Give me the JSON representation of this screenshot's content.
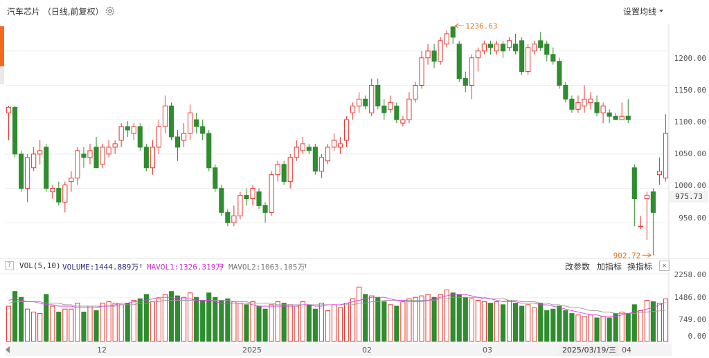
{
  "header": {
    "title": "汽车芯片 （日线,前复权）",
    "set_ma_label": "设置均线"
  },
  "icons": {
    "settings": "gear-icon",
    "set_ma_caret": "chevron-down-icon",
    "help": "question-icon",
    "close": "close-icon",
    "scroll_left": "chevron-left-icon"
  },
  "price_axis": {
    "labels": [
      "1200.00",
      "1150.00",
      "1100.00",
      "1050.00",
      "1000.00",
      "950.00"
    ],
    "current_price": "975.73"
  },
  "annotations": {
    "high": "1236.63",
    "low": "902.72"
  },
  "volume_panel": {
    "indicator": "VOL(5,10)",
    "volume": "VOLUME:1444.889万",
    "mavol1": "MAVOL1:1326.319万",
    "mavol2": "MAVOL2:1063.105万",
    "buttons": [
      "改参数",
      "加指标",
      "换指标"
    ],
    "axis_labels": [
      "2258.00",
      "1486.00",
      "749.00",
      "0.00"
    ]
  },
  "date_axis": {
    "labels": [
      "12",
      "2025",
      "02",
      "03",
      "04"
    ],
    "current_date": "2025/03/19/三"
  },
  "colors": {
    "up": "#e8352e",
    "down": "#2f8c2f",
    "ma1": "#e040e0",
    "ma2": "#999999",
    "annotation": "#e8761d"
  },
  "chart_data": {
    "type": "candlestick",
    "y_range": [
      900,
      1240
    ],
    "volume_range": [
      0,
      2258
    ],
    "candles": [
      [
        1110,
        1118,
        1070,
        1120,
        1200
      ],
      [
        1118,
        1050,
        1045,
        1120,
        1700
      ],
      [
        1050,
        1000,
        995,
        1055,
        1500
      ],
      [
        1000,
        1045,
        980,
        1050,
        1100
      ],
      [
        1030,
        1050,
        1025,
        1060,
        1000
      ],
      [
        1050,
        1055,
        1035,
        1070,
        950
      ],
      [
        1060,
        1000,
        995,
        1065,
        1600
      ],
      [
        995,
        1000,
        985,
        1005,
        1200
      ],
      [
        1000,
        980,
        975,
        1010,
        1000
      ],
      [
        980,
        1005,
        965,
        1010,
        1100
      ],
      [
        1010,
        1015,
        995,
        1025,
        1100
      ],
      [
        1015,
        1055,
        1005,
        1060,
        1300
      ],
      [
        1050,
        1045,
        1030,
        1060,
        1000
      ],
      [
        1045,
        1055,
        1035,
        1065,
        1200
      ],
      [
        1060,
        1030,
        1030,
        1075,
        1050
      ],
      [
        1035,
        1060,
        1030,
        1065,
        1300
      ],
      [
        1050,
        1060,
        1045,
        1070,
        1350
      ],
      [
        1060,
        1065,
        1050,
        1070,
        1300
      ],
      [
        1070,
        1090,
        1060,
        1095,
        1250
      ],
      [
        1090,
        1085,
        1075,
        1098,
        1300
      ],
      [
        1080,
        1090,
        1070,
        1095,
        1400
      ],
      [
        1090,
        1060,
        1055,
        1095,
        1450
      ],
      [
        1060,
        1030,
        1025,
        1065,
        1600
      ],
      [
        1030,
        1060,
        1020,
        1070,
        1350
      ],
      [
        1060,
        1090,
        1050,
        1100,
        1450
      ],
      [
        1090,
        1120,
        1080,
        1135,
        1600
      ],
      [
        1120,
        1075,
        1070,
        1125,
        1700
      ],
      [
        1075,
        1060,
        1040,
        1085,
        1550
      ],
      [
        1070,
        1080,
        1060,
        1095,
        1500
      ],
      [
        1080,
        1110,
        1070,
        1122,
        1650
      ],
      [
        1100,
        1090,
        1080,
        1110,
        1500
      ],
      [
        1090,
        1080,
        1070,
        1100,
        1400
      ],
      [
        1080,
        1030,
        1025,
        1085,
        1650
      ],
      [
        1030,
        1000,
        995,
        1035,
        1500
      ],
      [
        1000,
        965,
        960,
        1005,
        1400
      ],
      [
        965,
        950,
        945,
        970,
        1450
      ],
      [
        950,
        960,
        945,
        975,
        1350
      ],
      [
        960,
        990,
        955,
        995,
        1300
      ],
      [
        990,
        985,
        975,
        1000,
        1250
      ],
      [
        985,
        1000,
        975,
        1005,
        1350
      ],
      [
        995,
        975,
        970,
        1000,
        1200
      ],
      [
        975,
        965,
        950,
        980,
        1100
      ],
      [
        965,
        1020,
        960,
        1025,
        1250
      ],
      [
        1020,
        1035,
        1010,
        1040,
        1350
      ],
      [
        1035,
        1010,
        1005,
        1040,
        1300
      ],
      [
        1010,
        1045,
        1000,
        1050,
        1250
      ],
      [
        1045,
        1060,
        1040,
        1070,
        1200
      ],
      [
        1055,
        1065,
        1050,
        1075,
        1350
      ],
      [
        1060,
        1055,
        1050,
        1065,
        1250
      ],
      [
        1060,
        1025,
        1020,
        1065,
        1100
      ],
      [
        1025,
        1045,
        1015,
        1050,
        1300
      ],
      [
        1040,
        1060,
        1035,
        1065,
        1050
      ],
      [
        1060,
        1070,
        1055,
        1080,
        1250
      ],
      [
        1060,
        1065,
        1050,
        1075,
        1150
      ],
      [
        1070,
        1100,
        1060,
        1105,
        1300
      ],
      [
        1110,
        1120,
        1100,
        1125,
        1450
      ],
      [
        1120,
        1130,
        1110,
        1140,
        1850
      ],
      [
        1130,
        1120,
        1115,
        1135,
        1600
      ],
      [
        1110,
        1150,
        1105,
        1160,
        1550
      ],
      [
        1150,
        1120,
        1115,
        1160,
        1500
      ],
      [
        1120,
        1110,
        1100,
        1130,
        1350
      ],
      [
        1115,
        1125,
        1110,
        1135,
        1250
      ],
      [
        1120,
        1100,
        1095,
        1125,
        1200
      ],
      [
        1095,
        1100,
        1090,
        1105,
        1350
      ],
      [
        1100,
        1130,
        1095,
        1140,
        1450
      ],
      [
        1130,
        1150,
        1125,
        1155,
        1500
      ],
      [
        1150,
        1190,
        1145,
        1200,
        1550
      ],
      [
        1190,
        1200,
        1180,
        1210,
        1600
      ],
      [
        1200,
        1185,
        1175,
        1210,
        1500
      ],
      [
        1185,
        1215,
        1180,
        1220,
        1600
      ],
      [
        1210,
        1225,
        1205,
        1230,
        1750
      ],
      [
        1235,
        1220,
        1210,
        1236.63,
        1650
      ],
      [
        1210,
        1160,
        1155,
        1215,
        1600
      ],
      [
        1160,
        1150,
        1140,
        1170,
        1500
      ],
      [
        1150,
        1190,
        1130,
        1195,
        1450
      ],
      [
        1190,
        1200,
        1170,
        1205,
        1400
      ],
      [
        1200,
        1210,
        1195,
        1215,
        1350
      ],
      [
        1210,
        1205,
        1195,
        1215,
        1300
      ],
      [
        1200,
        1210,
        1195,
        1215,
        1350
      ],
      [
        1210,
        1200,
        1190,
        1215,
        1250
      ],
      [
        1205,
        1215,
        1200,
        1220,
        1400
      ],
      [
        1210,
        1200,
        1195,
        1225,
        1300
      ],
      [
        1215,
        1170,
        1165,
        1220,
        1200
      ],
      [
        1170,
        1205,
        1165,
        1210,
        1250
      ],
      [
        1200,
        1210,
        1195,
        1215,
        1150
      ],
      [
        1215,
        1205,
        1200,
        1228,
        1300
      ],
      [
        1210,
        1195,
        1185,
        1215,
        1050
      ],
      [
        1195,
        1185,
        1180,
        1205,
        1100
      ],
      [
        1185,
        1150,
        1145,
        1190,
        1200
      ],
      [
        1150,
        1130,
        1125,
        1155,
        1050
      ],
      [
        1130,
        1115,
        1110,
        1135,
        950
      ],
      [
        1115,
        1125,
        1110,
        1135,
        900
      ],
      [
        1120,
        1130,
        1110,
        1150,
        850
      ],
      [
        1125,
        1130,
        1115,
        1140,
        900
      ],
      [
        1125,
        1110,
        1105,
        1135,
        800
      ],
      [
        1110,
        1120,
        1095,
        1125,
        850
      ],
      [
        1110,
        1105,
        1095,
        1115,
        800
      ],
      [
        1105,
        1100,
        1100,
        1110,
        950
      ],
      [
        1100,
        1105,
        1100,
        1125,
        1000
      ],
      [
        1105,
        1100,
        1095,
        1130,
        950
      ],
      [
        1030,
        985,
        945,
        1035,
        1250
      ],
      [
        945,
        945,
        940,
        960,
        1050
      ],
      [
        985,
        990,
        925,
        995,
        1400
      ],
      [
        995,
        965,
        902.72,
        1000,
        1350
      ],
      [
        1020,
        1025,
        1005,
        1045,
        1300
      ],
      [
        1015,
        1080,
        1010,
        1108,
        1444.889
      ]
    ],
    "ma_volume_1": [
      1400,
      1450,
      1400,
      1350,
      1350,
      1300,
      1250,
      1250,
      1200,
      1200,
      1200,
      1150,
      1150,
      1150,
      1150,
      1200,
      1200,
      1250,
      1300,
      1300,
      1350,
      1350,
      1400,
      1450,
      1500,
      1500,
      1500,
      1450,
      1450,
      1450,
      1400,
      1400,
      1400,
      1350,
      1300,
      1300,
      1300,
      1300,
      1300,
      1250,
      1200,
      1200,
      1200,
      1200,
      1200,
      1200,
      1200,
      1250,
      1250,
      1200,
      1200,
      1250,
      1250,
      1250,
      1300,
      1350,
      1400,
      1450,
      1500,
      1500,
      1500,
      1450,
      1400,
      1400,
      1350,
      1350,
      1350,
      1400,
      1450,
      1500,
      1550,
      1600,
      1600,
      1600,
      1550,
      1500,
      1450,
      1450,
      1400,
      1350,
      1350,
      1350,
      1300,
      1300,
      1300,
      1250,
      1250,
      1200,
      1150,
      1100,
      1050,
      1000,
      950,
      900,
      900,
      850,
      850,
      850,
      900,
      950,
      1000,
      1050,
      1100,
      1150,
      1250,
      1326.3
    ],
    "ma_volume_2": [
      1300,
      1350,
      1350,
      1350,
      1350,
      1350,
      1300,
      1300,
      1300,
      1250,
      1250,
      1200,
      1200,
      1200,
      1200,
      1200,
      1200,
      1200,
      1250,
      1250,
      1250,
      1300,
      1300,
      1350,
      1350,
      1400,
      1400,
      1400,
      1400,
      1400,
      1400,
      1400,
      1400,
      1400,
      1400,
      1400,
      1350,
      1350,
      1350,
      1300,
      1300,
      1300,
      1300,
      1250,
      1250,
      1250,
      1250,
      1250,
      1250,
      1250,
      1250,
      1250,
      1250,
      1250,
      1250,
      1250,
      1300,
      1300,
      1350,
      1350,
      1400,
      1400,
      1400,
      1400,
      1400,
      1400,
      1400,
      1400,
      1400,
      1450,
      1450,
      1500,
      1500,
      1500,
      1500,
      1500,
      1500,
      1450,
      1450,
      1450,
      1400,
      1400,
      1350,
      1350,
      1350,
      1300,
      1300,
      1250,
      1250,
      1200,
      1150,
      1150,
      1100,
      1050,
      1050,
      1000,
      1000,
      950,
      950,
      950,
      950,
      980,
      1000,
      1020,
      1040,
      1063.1
    ]
  }
}
